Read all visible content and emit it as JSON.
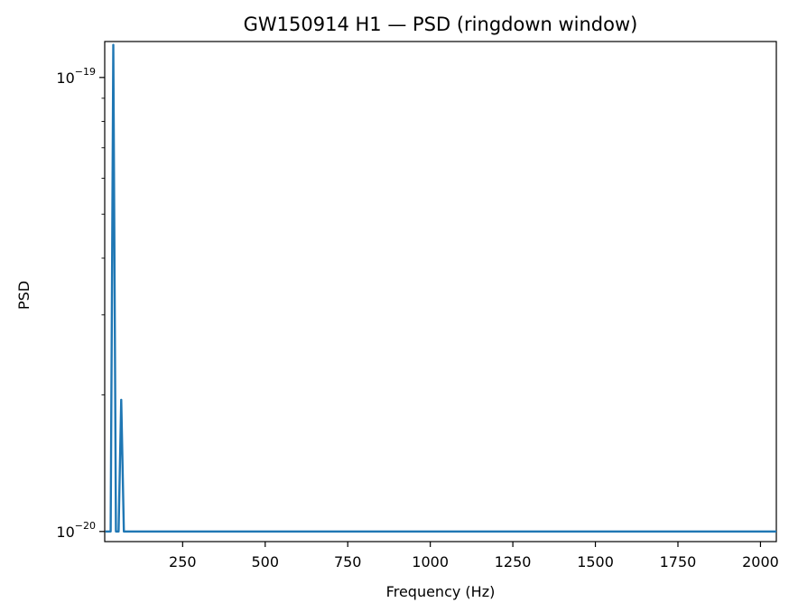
{
  "chart_data": {
    "type": "line",
    "title": "GW150914 H1 — PSD (ringdown window)",
    "xlabel": "Frequency (Hz)",
    "ylabel": "PSD",
    "xlim": [
      14,
      2048
    ],
    "ylim": [
      9.5e-21,
      1.2e-19
    ],
    "yscale": "log",
    "grid": false,
    "x_ticks": [
      250,
      500,
      750,
      1000,
      1250,
      1500,
      1750,
      2000
    ],
    "x_tick_labels": [
      "250",
      "500",
      "750",
      "1000",
      "1250",
      "1500",
      "1750",
      "2000"
    ],
    "y_ticks": [
      1e-20,
      1e-19
    ],
    "y_tick_labels": [
      {
        "base": "10",
        "exp": "−20"
      },
      {
        "base": "10",
        "exp": "−19"
      }
    ],
    "series": [
      {
        "color": "#1f77b4",
        "x": [
          16,
          24,
          32,
          40,
          48,
          56,
          64,
          72,
          80,
          2048
        ],
        "y": [
          1e-20,
          1e-20,
          1e-20,
          1.18e-19,
          1e-20,
          1e-20,
          1.95e-20,
          1e-20,
          1e-20,
          1e-20
        ]
      }
    ]
  }
}
